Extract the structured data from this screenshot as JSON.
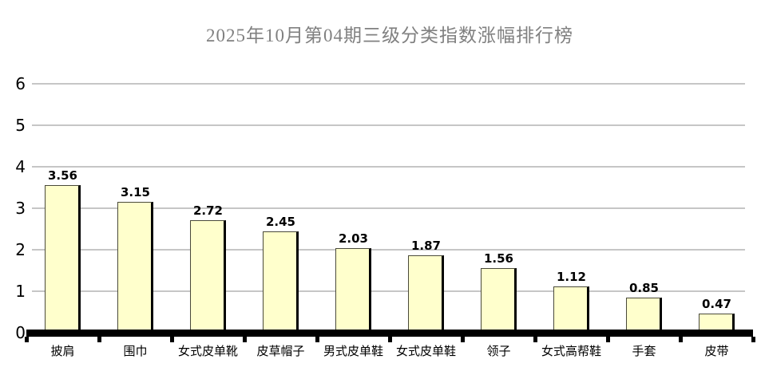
{
  "title": "2025年10月第04期三级分类指数涨幅排行榜",
  "chart_data": {
    "type": "bar",
    "title": "2025年10月第04期三级分类指数涨幅排行榜",
    "categories": [
      "披肩",
      "围巾",
      "女式皮单靴",
      "皮草帽子",
      "男式皮单鞋",
      "女式皮单鞋",
      "领子",
      "女式高帮鞋",
      "手套",
      "皮带"
    ],
    "values": [
      3.56,
      3.15,
      2.72,
      2.45,
      2.03,
      1.87,
      1.56,
      1.12,
      0.85,
      0.47
    ],
    "value_labels": [
      "3.56",
      "3.15",
      "2.72",
      "2.45",
      "2.03",
      "1.87",
      "1.56",
      "1.12",
      "0.85",
      "0.47"
    ],
    "xlabel": "",
    "ylabel": "",
    "ylim": [
      0,
      6
    ],
    "yticks": [
      0,
      1,
      2,
      3,
      4,
      5,
      6
    ],
    "grid": true,
    "legend": "none",
    "colors": {
      "background": "#FFFFFF",
      "bar_fill": "#FFFFCC",
      "bar_border": "#000000",
      "gridline": "#C6C6C6",
      "axis": "#000000",
      "title_text": "#808080",
      "label_text": "#000000"
    }
  }
}
